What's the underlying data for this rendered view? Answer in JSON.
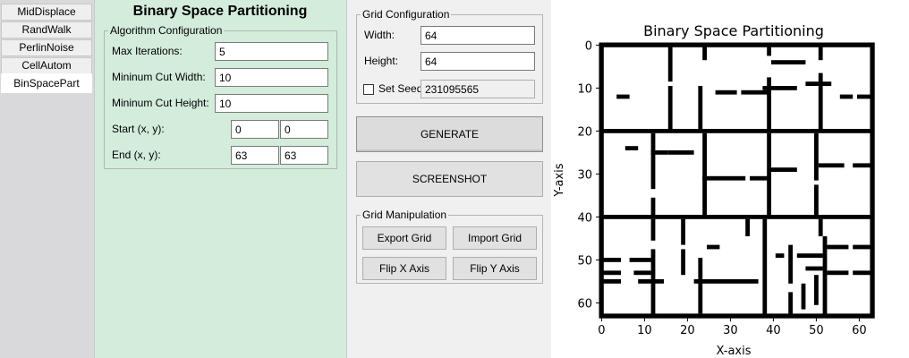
{
  "tabs": [
    {
      "label": "MidDisplace"
    },
    {
      "label": "RandWalk"
    },
    {
      "label": "PerlinNoise"
    },
    {
      "label": "CellAutom"
    },
    {
      "label": "BinSpacePart"
    }
  ],
  "algo": {
    "title": "Binary Space Partitioning",
    "config_legend": "Algorithm Configuration",
    "max_iter_label": "Max Iterations:",
    "max_iter_value": "5",
    "min_cut_width_label": "Mininum Cut Width:",
    "min_cut_width_value": "10",
    "min_cut_height_label": "Mininum Cut Height:",
    "min_cut_height_value": "10",
    "start_label": "Start (x, y):",
    "start_x": "0",
    "start_y": "0",
    "end_label": "End (x, y):",
    "end_x": "63",
    "end_y": "63"
  },
  "grid_config": {
    "legend": "Grid Configuration",
    "width_label": "Width:",
    "width_value": "64",
    "height_label": "Height:",
    "height_value": "64",
    "seed_label": "Set Seed",
    "seed_checked": false,
    "seed_value": "231095565"
  },
  "buttons": {
    "generate": "GENERATE",
    "screenshot": "SCREENSHOT"
  },
  "grid_manip": {
    "legend": "Grid Manipulation",
    "export": "Export Grid",
    "import": "Import Grid",
    "flip_x": "Flip X Axis",
    "flip_y": "Flip Y Axis"
  },
  "chart_data": {
    "type": "heatmap",
    "title": "Binary Space Partitioning",
    "xlabel": "X-axis",
    "ylabel": "Y-axis",
    "xlim": [
      0,
      63
    ],
    "ylim": [
      0,
      63
    ],
    "y_inverted": true,
    "xticks": [
      0,
      10,
      20,
      30,
      40,
      50,
      60
    ],
    "yticks": [
      0,
      10,
      20,
      30,
      40,
      50,
      60
    ],
    "colormap": {
      "wall": "#000000",
      "floor": "#ffffff"
    },
    "walls": [
      [
        0,
        0,
        63,
        0
      ],
      [
        0,
        63,
        63,
        63
      ],
      [
        0,
        0,
        0,
        63
      ],
      [
        63,
        0,
        63,
        63
      ],
      [
        0,
        20,
        63,
        20
      ],
      [
        0,
        40,
        63,
        40
      ],
      [
        16,
        0,
        16,
        8
      ],
      [
        16,
        10,
        16,
        19
      ],
      [
        24,
        0,
        24,
        3
      ],
      [
        23,
        10,
        23,
        19
      ],
      [
        39,
        0,
        39,
        2
      ],
      [
        39,
        8,
        39,
        19
      ],
      [
        51,
        0,
        51,
        3
      ],
      [
        51,
        7,
        51,
        19
      ],
      [
        40,
        4,
        47,
        4
      ],
      [
        38,
        10,
        45,
        10
      ],
      [
        48,
        9,
        53,
        9
      ],
      [
        27,
        11,
        31,
        11
      ],
      [
        33,
        11,
        39,
        11
      ],
      [
        4,
        12,
        6,
        12
      ],
      [
        56,
        12,
        58,
        12
      ],
      [
        60,
        12,
        63,
        12
      ],
      [
        12,
        21,
        12,
        33
      ],
      [
        12,
        36,
        12,
        39
      ],
      [
        24,
        21,
        24,
        39
      ],
      [
        39,
        21,
        39,
        39
      ],
      [
        50,
        21,
        50,
        31
      ],
      [
        50,
        33,
        50,
        39
      ],
      [
        24,
        31,
        33,
        31
      ],
      [
        35,
        31,
        39,
        31
      ],
      [
        40,
        29,
        45,
        29
      ],
      [
        51,
        28,
        56,
        28
      ],
      [
        59,
        28,
        63,
        28
      ],
      [
        12,
        25,
        15,
        25
      ],
      [
        16,
        25,
        21,
        25
      ],
      [
        6,
        24,
        8,
        24
      ],
      [
        19,
        41,
        19,
        46
      ],
      [
        34,
        41,
        34,
        44
      ],
      [
        51,
        41,
        51,
        44
      ],
      [
        12,
        41,
        12,
        45
      ],
      [
        38,
        41,
        38,
        63
      ],
      [
        52,
        45,
        52,
        63
      ],
      [
        19,
        48,
        19,
        53
      ],
      [
        12,
        48,
        12,
        63
      ],
      [
        44,
        47,
        44,
        55
      ],
      [
        44,
        58,
        44,
        63
      ],
      [
        0,
        50,
        4,
        50
      ],
      [
        7,
        50,
        11,
        50
      ],
      [
        25,
        47,
        27,
        47
      ],
      [
        41,
        49,
        42,
        49
      ],
      [
        46,
        49,
        51,
        49
      ],
      [
        53,
        47,
        57,
        47
      ],
      [
        59,
        47,
        63,
        47
      ],
      [
        0,
        53,
        4,
        53
      ],
      [
        8,
        53,
        11,
        53
      ],
      [
        0,
        55,
        4,
        55
      ],
      [
        9,
        55,
        14,
        55
      ],
      [
        22,
        55,
        36,
        55
      ],
      [
        48,
        52,
        51,
        52
      ],
      [
        53,
        53,
        57,
        53
      ],
      [
        59,
        53,
        63,
        53
      ],
      [
        23,
        50,
        23,
        62
      ],
      [
        47,
        56,
        47,
        61
      ],
      [
        50,
        54,
        50,
        60
      ]
    ]
  }
}
